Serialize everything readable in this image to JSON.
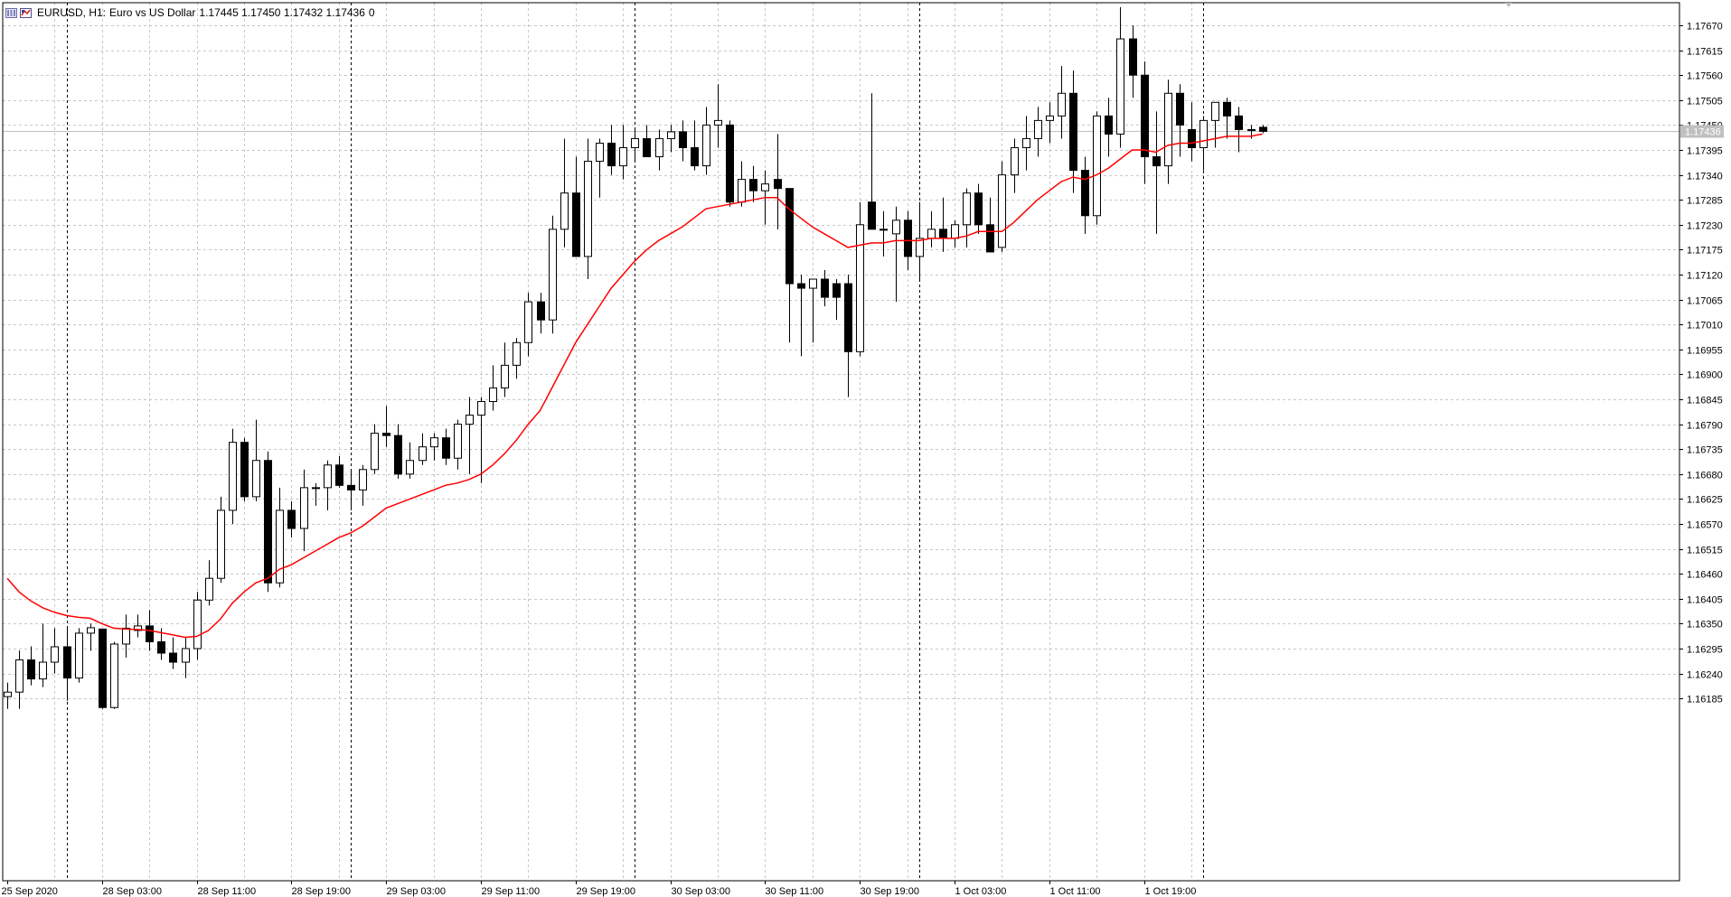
{
  "header": {
    "symbol": "EURUSD, H1:",
    "description": "Euro vs US Dollar",
    "ohlc": "1.17445 1.17450 1.17432 1.17436",
    "extra": "0"
  },
  "colors": {
    "background": "#ffffff",
    "grid": "#c8c8c8",
    "candle_bull_body": "#ffffff",
    "candle_bear_body": "#000000",
    "candle_outline": "#000000",
    "ma_line": "#ff0000",
    "price_line": "#c0c0c0",
    "price_tag_bg": "#c0c0c0"
  },
  "chart_data": {
    "type": "candlestick",
    "symbol": "EURUSD",
    "timeframe": "H1",
    "current_price": "1.17436",
    "y_ticks": [
      "1.17670",
      "1.17615",
      "1.17560",
      "1.17505",
      "1.17450",
      "1.17395",
      "1.17340",
      "1.17285",
      "1.17230",
      "1.17175",
      "1.17120",
      "1.17065",
      "1.17010",
      "1.16955",
      "1.16900",
      "1.16845",
      "1.16790",
      "1.16735",
      "1.16680",
      "1.16625",
      "1.16570",
      "1.16515",
      "1.16460",
      "1.16405",
      "1.16350",
      "1.16295",
      "1.16240",
      "1.16185"
    ],
    "x_labels": [
      {
        "index": 0,
        "label": "25 Sep 2020"
      },
      {
        "index": 8,
        "label": "28 Sep 03:00"
      },
      {
        "index": 16,
        "label": "28 Sep 11:00"
      },
      {
        "index": 24,
        "label": "28 Sep 19:00"
      },
      {
        "index": 32,
        "label": "29 Sep 03:00"
      },
      {
        "index": 40,
        "label": "29 Sep 11:00"
      },
      {
        "index": 48,
        "label": "29 Sep 19:00"
      },
      {
        "index": 56,
        "label": "30 Sep 03:00"
      },
      {
        "index": 64,
        "label": "30 Sep 11:00"
      },
      {
        "index": 72,
        "label": "30 Sep 19:00"
      },
      {
        "index": 80,
        "label": "1 Oct 03:00"
      },
      {
        "index": 88,
        "label": "1 Oct 11:00"
      },
      {
        "index": 96,
        "label": "1 Oct 19:00"
      }
    ],
    "period_separators": [
      5,
      29,
      53,
      77,
      101
    ],
    "ohlc": [
      [
        1.16189,
        1.1622,
        1.16162,
        1.16199
      ],
      [
        1.16199,
        1.16291,
        1.16162,
        1.1627
      ],
      [
        1.1627,
        1.163,
        1.16214,
        1.16228
      ],
      [
        1.16228,
        1.1635,
        1.1621,
        1.16265
      ],
      [
        1.16265,
        1.1634,
        1.1624,
        1.16299
      ],
      [
        1.16299,
        1.1634,
        1.1618,
        1.1623
      ],
      [
        1.1623,
        1.1634,
        1.1622,
        1.16329
      ],
      [
        1.16329,
        1.1635,
        1.1629,
        1.16341
      ],
      [
        1.16338,
        1.16338,
        1.16162,
        1.16165
      ],
      [
        1.16165,
        1.1631,
        1.16162,
        1.16305
      ],
      [
        1.16305,
        1.1637,
        1.16275,
        1.1634
      ],
      [
        1.16335,
        1.1637,
        1.1632,
        1.16345
      ],
      [
        1.16345,
        1.1638,
        1.1629,
        1.1631
      ],
      [
        1.1631,
        1.1634,
        1.1627,
        1.16285
      ],
      [
        1.16285,
        1.1632,
        1.1625,
        1.16265
      ],
      [
        1.16265,
        1.1632,
        1.1623,
        1.16295
      ],
      [
        1.16295,
        1.1642,
        1.1627,
        1.16402
      ],
      [
        1.16402,
        1.1649,
        1.1639,
        1.1645
      ],
      [
        1.1645,
        1.1663,
        1.1644,
        1.166
      ],
      [
        1.166,
        1.1678,
        1.1657,
        1.1675
      ],
      [
        1.1675,
        1.1676,
        1.1662,
        1.1663
      ],
      [
        1.1663,
        1.168,
        1.1662,
        1.1671
      ],
      [
        1.1671,
        1.1673,
        1.1642,
        1.1644
      ],
      [
        1.1644,
        1.1665,
        1.1643,
        1.166
      ],
      [
        1.166,
        1.1662,
        1.1654,
        1.1656
      ],
      [
        1.1656,
        1.1669,
        1.1651,
        1.1665
      ],
      [
        1.1665,
        1.1666,
        1.1661,
        1.1665
      ],
      [
        1.1665,
        1.1671,
        1.166,
        1.167
      ],
      [
        1.167,
        1.1672,
        1.1665,
        1.16655
      ],
      [
        1.16655,
        1.1669,
        1.166,
        1.16645
      ],
      [
        1.16645,
        1.167,
        1.1661,
        1.1669
      ],
      [
        1.1669,
        1.1679,
        1.1668,
        1.1677
      ],
      [
        1.1677,
        1.1683,
        1.1674,
        1.16765
      ],
      [
        1.16765,
        1.1679,
        1.1667,
        1.1668
      ],
      [
        1.1668,
        1.1675,
        1.1667,
        1.1671
      ],
      [
        1.1671,
        1.1677,
        1.167,
        1.1674
      ],
      [
        1.1674,
        1.1677,
        1.1671,
        1.1676
      ],
      [
        1.1676,
        1.1678,
        1.167,
        1.16715
      ],
      [
        1.16715,
        1.168,
        1.1669,
        1.1679
      ],
      [
        1.1679,
        1.1685,
        1.1668,
        1.1681
      ],
      [
        1.1681,
        1.1685,
        1.1666,
        1.1684
      ],
      [
        1.1684,
        1.1692,
        1.1682,
        1.1687
      ],
      [
        1.1687,
        1.1697,
        1.1685,
        1.1692
      ],
      [
        1.1692,
        1.1698,
        1.1689,
        1.1697
      ],
      [
        1.1697,
        1.1708,
        1.1694,
        1.1706
      ],
      [
        1.1706,
        1.1708,
        1.1699,
        1.1702
      ],
      [
        1.1702,
        1.1725,
        1.1699,
        1.1722
      ],
      [
        1.1722,
        1.1742,
        1.1718,
        1.173
      ],
      [
        1.173,
        1.1738,
        1.1716,
        1.1716
      ],
      [
        1.1716,
        1.1742,
        1.1711,
        1.1737
      ],
      [
        1.1737,
        1.1742,
        1.1729,
        1.1741
      ],
      [
        1.1741,
        1.1745,
        1.1734,
        1.1736
      ],
      [
        1.1736,
        1.1745,
        1.1733,
        1.174
      ],
      [
        1.174,
        1.1744,
        1.1737,
        1.1742
      ],
      [
        1.1742,
        1.1745,
        1.1738,
        1.1738
      ],
      [
        1.1738,
        1.1744,
        1.1735,
        1.1742
      ],
      [
        1.1742,
        1.1745,
        1.1739,
        1.17435
      ],
      [
        1.17435,
        1.1746,
        1.1737,
        1.174
      ],
      [
        1.174,
        1.1746,
        1.1735,
        1.1736
      ],
      [
        1.1736,
        1.1749,
        1.1734,
        1.1745
      ],
      [
        1.1745,
        1.1754,
        1.174,
        1.1746
      ],
      [
        1.1745,
        1.1746,
        1.1727,
        1.1728
      ],
      [
        1.1728,
        1.1737,
        1.1727,
        1.1733
      ],
      [
        1.1733,
        1.1736,
        1.1728,
        1.17305
      ],
      [
        1.17305,
        1.1735,
        1.1723,
        1.1732
      ],
      [
        1.1733,
        1.1743,
        1.1722,
        1.1731
      ],
      [
        1.1731,
        1.1731,
        1.1697,
        1.171
      ],
      [
        1.171,
        1.1712,
        1.1694,
        1.1709
      ],
      [
        1.1709,
        1.1711,
        1.1697,
        1.1711
      ],
      [
        1.1711,
        1.1713,
        1.1705,
        1.1707
      ],
      [
        1.171,
        1.1711,
        1.1702,
        1.1707
      ],
      [
        1.171,
        1.1712,
        1.1685,
        1.1695
      ],
      [
        1.1695,
        1.1728,
        1.1694,
        1.1723
      ],
      [
        1.1728,
        1.1752,
        1.1722,
        1.1722
      ],
      [
        1.1722,
        1.1726,
        1.1716,
        1.1722
      ],
      [
        1.1721,
        1.1727,
        1.1706,
        1.1724
      ],
      [
        1.1724,
        1.1726,
        1.1713,
        1.1716
      ],
      [
        1.1716,
        1.1728,
        1.1711,
        1.172
      ],
      [
        1.172,
        1.1726,
        1.1718,
        1.1722
      ],
      [
        1.1722,
        1.1729,
        1.1717,
        1.172
      ],
      [
        1.172,
        1.1724,
        1.1718,
        1.1723
      ],
      [
        1.1723,
        1.1731,
        1.1718,
        1.173
      ],
      [
        1.173,
        1.1732,
        1.1721,
        1.1723
      ],
      [
        1.1723,
        1.1729,
        1.1718,
        1.1717
      ],
      [
        1.1718,
        1.1737,
        1.1717,
        1.1734
      ],
      [
        1.1734,
        1.1742,
        1.173,
        1.174
      ],
      [
        1.174,
        1.1747,
        1.1735,
        1.1742
      ],
      [
        1.1742,
        1.1749,
        1.1738,
        1.1746
      ],
      [
        1.1746,
        1.175,
        1.1741,
        1.1747
      ],
      [
        1.1747,
        1.1758,
        1.1742,
        1.1752
      ],
      [
        1.1752,
        1.1757,
        1.173,
        1.1735
      ],
      [
        1.1735,
        1.1738,
        1.1721,
        1.1725
      ],
      [
        1.1725,
        1.1748,
        1.1723,
        1.1747
      ],
      [
        1.1747,
        1.1751,
        1.1738,
        1.1743
      ],
      [
        1.1743,
        1.1771,
        1.174,
        1.1764
      ],
      [
        1.1764,
        1.1767,
        1.1751,
        1.1756
      ],
      [
        1.1756,
        1.1759,
        1.1732,
        1.1738
      ],
      [
        1.1738,
        1.1748,
        1.1721,
        1.1736
      ],
      [
        1.1736,
        1.1755,
        1.1732,
        1.1752
      ],
      [
        1.1752,
        1.1754,
        1.1738,
        1.1745
      ],
      [
        1.1744,
        1.175,
        1.1737,
        1.174
      ],
      [
        1.174,
        1.1747,
        1.1735,
        1.1746
      ],
      [
        1.1746,
        1.175,
        1.174,
        1.175
      ],
      [
        1.175,
        1.1751,
        1.1742,
        1.1747
      ],
      [
        1.1747,
        1.1749,
        1.1739,
        1.1744
      ],
      [
        1.1744,
        1.1745,
        1.1742,
        1.1744
      ],
      [
        1.17445,
        1.1745,
        1.17432,
        1.17436
      ]
    ],
    "moving_average": {
      "color": "#ff0000",
      "values": [
        1.1645,
        1.1642,
        1.164,
        1.16385,
        1.16375,
        1.16368,
        1.16364,
        1.16362,
        1.1635,
        1.1634,
        1.16338,
        1.16337,
        1.16335,
        1.1633,
        1.16325,
        1.1632,
        1.16322,
        1.16335,
        1.1636,
        1.16395,
        1.1642,
        1.1644,
        1.1645,
        1.1647,
        1.1648,
        1.16495,
        1.1651,
        1.16525,
        1.1654,
        1.1655,
        1.16565,
        1.16585,
        1.16605,
        1.16615,
        1.16625,
        1.16635,
        1.16645,
        1.16655,
        1.1666,
        1.16668,
        1.1668,
        1.167,
        1.16725,
        1.16755,
        1.1679,
        1.1682,
        1.1687,
        1.1692,
        1.1697,
        1.1701,
        1.1705,
        1.1709,
        1.1712,
        1.1715,
        1.17175,
        1.17195,
        1.1721,
        1.17225,
        1.17245,
        1.17265,
        1.1727,
        1.17275,
        1.1728,
        1.17285,
        1.1729,
        1.1729,
        1.17265,
        1.17245,
        1.17225,
        1.1721,
        1.17195,
        1.1718,
        1.17185,
        1.1719,
        1.1719,
        1.17195,
        1.17195,
        1.17195,
        1.172,
        1.172,
        1.172,
        1.17205,
        1.17215,
        1.17215,
        1.17215,
        1.17235,
        1.1726,
        1.17285,
        1.17305,
        1.17325,
        1.17335,
        1.1733,
        1.1734,
        1.17355,
        1.17375,
        1.17395,
        1.17395,
        1.1739,
        1.17405,
        1.1741,
        1.1741,
        1.17415,
        1.1742,
        1.17425,
        1.17425,
        1.17425,
        1.1743
      ]
    }
  }
}
